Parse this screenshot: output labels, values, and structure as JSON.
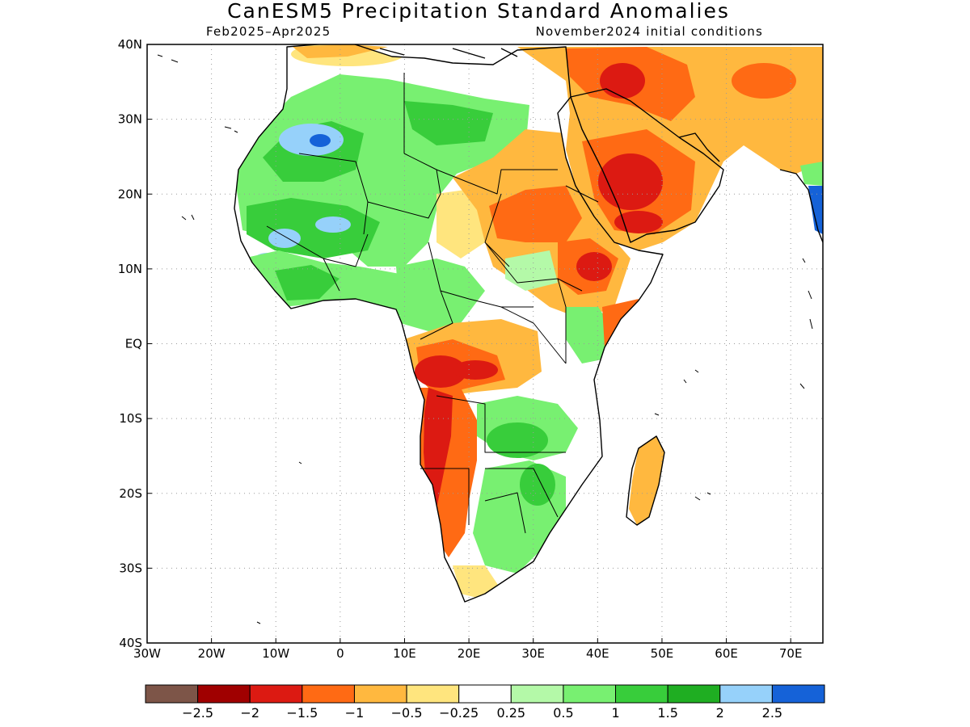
{
  "header": {
    "title": "CanESM5 Precipitation Standard Anomalies",
    "period": "Feb2025–Apr2025",
    "init": "November2024 initial conditions"
  },
  "axes": {
    "lon_labels": [
      "30W",
      "20W",
      "10W",
      "0",
      "10E",
      "20E",
      "30E",
      "40E",
      "50E",
      "60E",
      "70E"
    ],
    "lon_values": [
      -30,
      -20,
      -10,
      0,
      10,
      20,
      30,
      40,
      50,
      60,
      70
    ],
    "lat_labels": [
      "40N",
      "30N",
      "20N",
      "10N",
      "EQ",
      "10S",
      "20S",
      "30S",
      "40S"
    ],
    "lat_values": [
      40,
      30,
      20,
      10,
      0,
      -10,
      -20,
      -30,
      -40
    ],
    "lon_range": [
      -30,
      75
    ],
    "lat_range": [
      -40,
      40
    ]
  },
  "colorbar": {
    "colors": [
      "#7d5548",
      "#a00000",
      "#dc1a12",
      "#ff6a14",
      "#ffb83f",
      "#ffe57e",
      "#ffffff",
      "#b4f9a8",
      "#78f071",
      "#38cd3b",
      "#1fae22",
      "#96d1fa",
      "#1562d8"
    ],
    "labels": [
      "−2.5",
      "−2",
      "−1.5",
      "−1",
      "−0.5",
      "−0.25",
      "0.25",
      "0.5",
      "1",
      "1.5",
      "2",
      "2.5"
    ]
  }
}
